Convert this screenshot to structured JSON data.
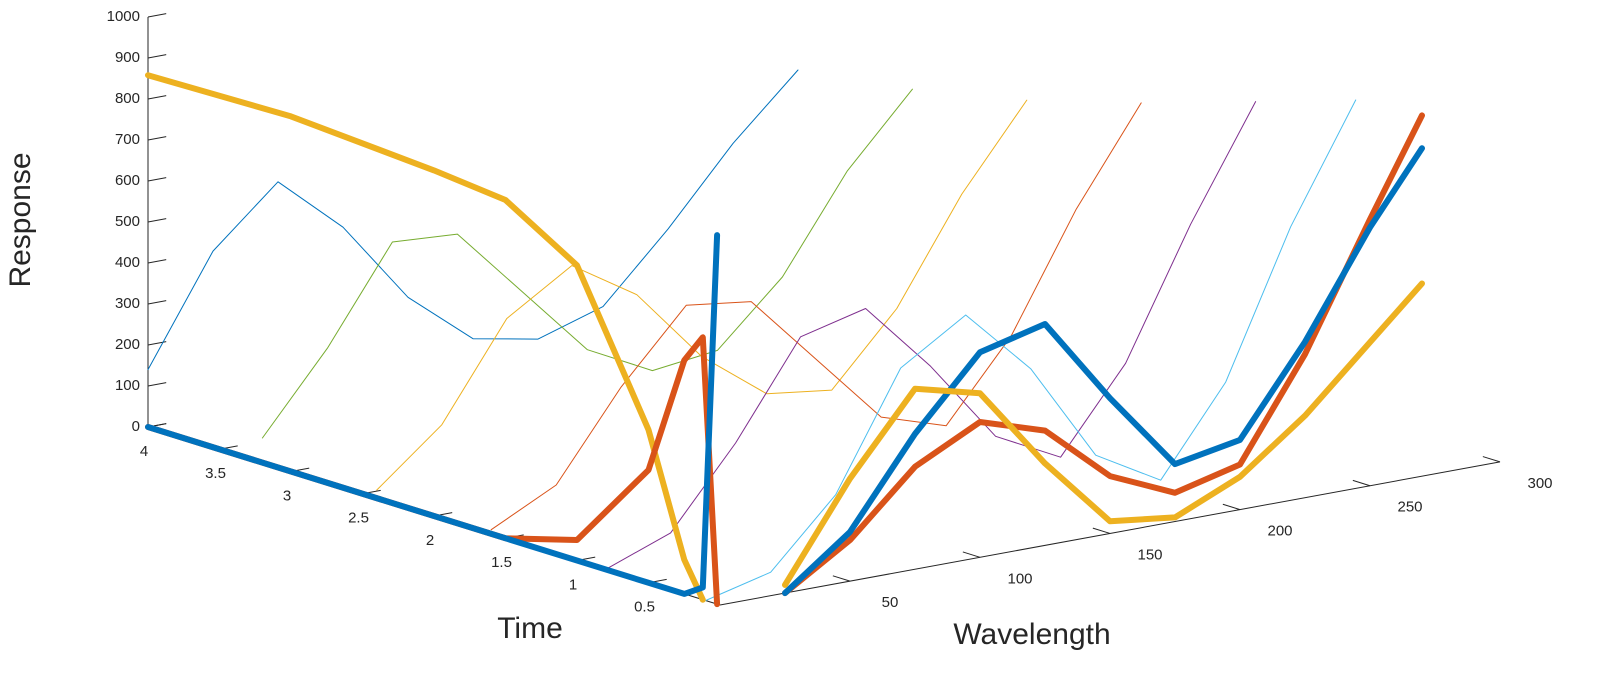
{
  "chart_data": {
    "type": "line3d",
    "xlabel": "Time",
    "ylabel": "Wavelength",
    "zlabel": "Response",
    "tlim": [
      0,
      4
    ],
    "tticks": [
      0.5,
      1,
      1.5,
      2,
      2.5,
      3,
      3.5,
      4
    ],
    "wlim": [
      0,
      300
    ],
    "wticks": [
      50,
      100,
      150,
      200,
      250,
      300
    ],
    "zlim": [
      0,
      1000
    ],
    "zticks": [
      0,
      100,
      200,
      300,
      400,
      500,
      600,
      700,
      800,
      900,
      1000
    ],
    "surface": {
      "x": [
        0,
        25,
        50,
        75,
        100,
        125,
        150,
        175,
        200,
        225,
        250
      ],
      "series": [
        {
          "time": 4,
          "color": "#0072BD",
          "values": [
            140,
            400,
            540,
            400,
            200,
            70,
            40,
            90,
            250,
            430,
            580
          ]
        },
        {
          "time": 3.2,
          "color": "#77AC30",
          "values": [
            60,
            250,
            480,
            470,
            300,
            130,
            50,
            70,
            220,
            450,
            620
          ]
        },
        {
          "time": 2.4,
          "color": "#EDB120",
          "values": [
            20,
            150,
            380,
            480,
            380,
            200,
            80,
            60,
            230,
            480,
            680
          ]
        },
        {
          "time": 1.6,
          "color": "#D95319",
          "values": [
            10,
            90,
            300,
            470,
            450,
            280,
            110,
            60,
            250,
            530,
            760
          ]
        },
        {
          "time": 0.8,
          "color": "#7E2F8E",
          "values": [
            0,
            60,
            250,
            480,
            520,
            350,
            150,
            70,
            270,
            580,
            850
          ]
        },
        {
          "time": 0.1,
          "color": "#4DBEEE",
          "values": [
            0,
            40,
            200,
            480,
            580,
            420,
            180,
            90,
            300,
            650,
            930
          ]
        }
      ]
    },
    "time_slices": {
      "wavelength": 0,
      "x": [
        4,
        3,
        2,
        1.5,
        1,
        0.5,
        0.25,
        0.12,
        0.02
      ],
      "series": [
        {
          "color": "#EDB120",
          "values": [
            858,
            866,
            843,
            825,
            720,
            373,
            83,
            0,
            null
          ]
        },
        {
          "color": "#D95319",
          "values": [
            0,
            0,
            0,
            0,
            50,
            275,
            570,
            640,
            0
          ]
        },
        {
          "color": "#0072BD",
          "values": [
            0,
            0,
            0,
            0,
            0,
            0,
            0,
            30,
            900
          ]
        }
      ]
    },
    "wavelength_slices": {
      "time": 0,
      "x": [
        25,
        50,
        75,
        100,
        125,
        150,
        175,
        200,
        225,
        250,
        270
      ],
      "series": [
        {
          "color": "#D95319",
          "values": [
            0,
            100,
            250,
            330,
            280,
            140,
            70,
            110,
            350,
            650,
            880
          ]
        },
        {
          "color": "#0072BD",
          "values": [
            0,
            120,
            330,
            500,
            540,
            330,
            140,
            170,
            380,
            630,
            800
          ]
        },
        {
          "color": "#EDB120",
          "values": [
            20,
            250,
            440,
            400,
            200,
            30,
            10,
            80,
            200,
            350,
            470
          ]
        }
      ]
    }
  }
}
